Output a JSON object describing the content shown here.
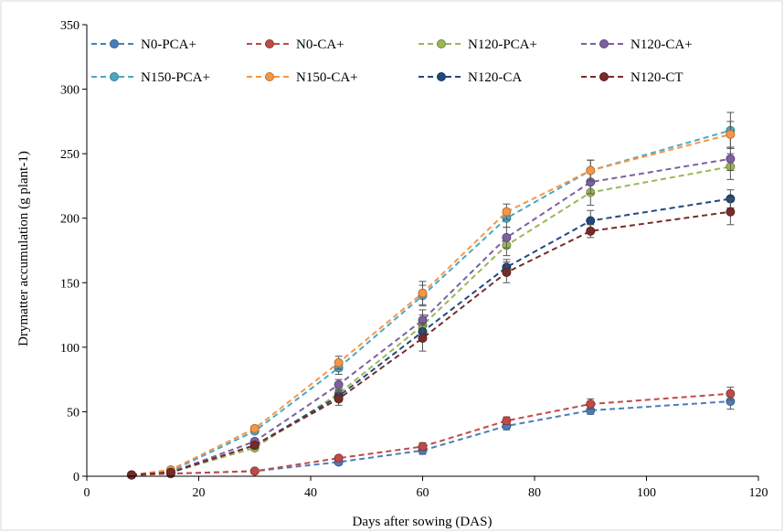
{
  "chart_data": {
    "type": "line",
    "title": "",
    "xlabel": "Days after sowing (DAS)",
    "ylabel": "Drymatter accumulation (g plant-1)",
    "xlim": [
      0,
      120
    ],
    "ylim": [
      0,
      350
    ],
    "xticks": [
      0,
      20,
      40,
      60,
      80,
      100,
      120
    ],
    "yticks": [
      0,
      50,
      100,
      150,
      200,
      250,
      300,
      350
    ],
    "grid": false,
    "legend_position": "top",
    "x": [
      8,
      15,
      30,
      45,
      60,
      75,
      90,
      115
    ],
    "series": [
      {
        "name": "N0-PCA+",
        "color": "#4a7ebb",
        "values": [
          1,
          2,
          4,
          11,
          20,
          39,
          51,
          58
        ],
        "errors": [
          1,
          1,
          1,
          2,
          3,
          3,
          3,
          6
        ]
      },
      {
        "name": "N0-CA+",
        "color": "#be4b48",
        "values": [
          1,
          2,
          4,
          14,
          23,
          43,
          56,
          64
        ],
        "errors": [
          1,
          1,
          1,
          2,
          3,
          3,
          4,
          5
        ]
      },
      {
        "name": "N120-PCA+",
        "color": "#98b954",
        "values": [
          1,
          3,
          22,
          64,
          117,
          179,
          220,
          240
        ],
        "errors": [
          1,
          1,
          2,
          4,
          8,
          8,
          10,
          10
        ]
      },
      {
        "name": "N120-CA+",
        "color": "#7d60a0",
        "values": [
          1,
          3,
          27,
          71,
          121,
          185,
          228,
          246
        ],
        "errors": [
          1,
          1,
          2,
          4,
          8,
          8,
          9,
          9
        ]
      },
      {
        "name": "N150-PCA+",
        "color": "#46aac5",
        "values": [
          1,
          4,
          35,
          84,
          140,
          200,
          237,
          268
        ],
        "errors": [
          1,
          1,
          2,
          5,
          8,
          7,
          8,
          14
        ]
      },
      {
        "name": "N150-CA+",
        "color": "#f79646",
        "values": [
          1,
          5,
          37,
          88,
          142,
          205,
          237,
          265
        ],
        "errors": [
          1,
          1,
          2,
          5,
          9,
          6,
          8,
          10
        ]
      },
      {
        "name": "N120-CA",
        "color": "#1f497d",
        "values": [
          1,
          3,
          24,
          62,
          112,
          162,
          198,
          215
        ],
        "errors": [
          1,
          1,
          2,
          4,
          7,
          6,
          8,
          7
        ]
      },
      {
        "name": "N120-CT",
        "color": "#772c2a",
        "values": [
          1,
          3,
          24,
          60,
          107,
          158,
          190,
          205
        ],
        "errors": [
          1,
          1,
          2,
          5,
          10,
          8,
          5,
          10
        ]
      }
    ]
  }
}
